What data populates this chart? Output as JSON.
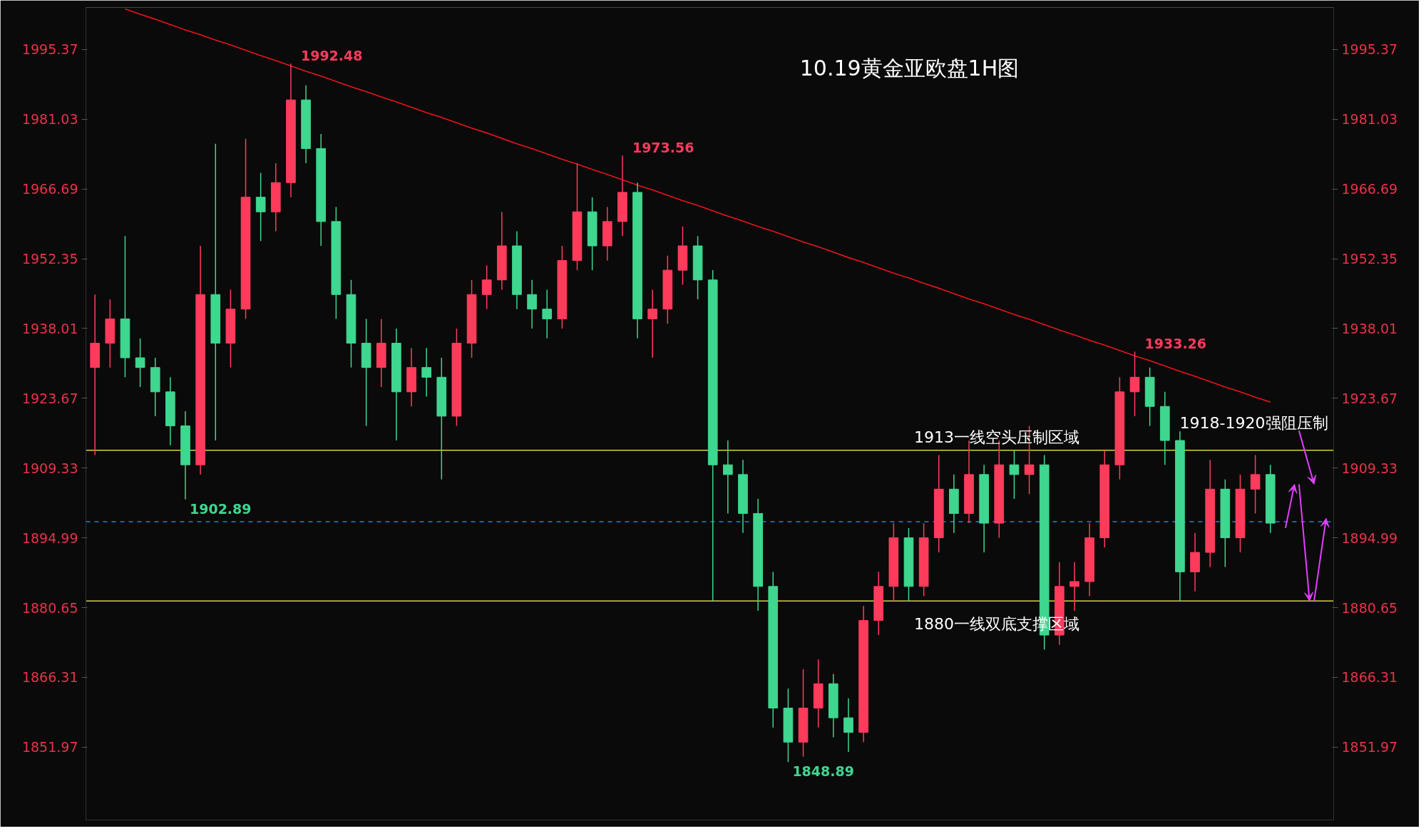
{
  "chart_data": {
    "type": "candlestick",
    "title": "10.19黄金亚欧盘1H图",
    "categories": [
      null,
      null,
      null,
      null,
      null,
      null,
      null,
      null,
      null,
      null,
      null,
      null,
      null,
      null,
      null,
      null,
      null,
      null,
      null,
      null,
      null,
      null,
      null,
      null,
      null,
      null,
      null,
      null,
      null,
      null,
      null,
      null,
      null,
      null,
      null,
      null,
      null,
      null,
      null,
      null,
      null,
      null,
      null,
      null,
      null,
      null,
      null,
      null,
      null,
      null,
      null,
      null,
      null,
      null,
      null,
      null,
      null,
      null,
      null,
      null,
      null,
      null,
      null,
      null,
      null,
      null,
      null,
      null,
      null,
      null,
      null,
      null,
      null,
      null,
      null,
      null,
      null,
      null,
      null
    ],
    "ohlc": [
      [
        1930,
        1945,
        1912,
        1935
      ],
      [
        1935,
        1944,
        1930,
        1940
      ],
      [
        1940,
        1957,
        1928,
        1932
      ],
      [
        1932,
        1936,
        1926,
        1930
      ],
      [
        1930,
        1932,
        1920,
        1925
      ],
      [
        1925,
        1928,
        1914,
        1918
      ],
      [
        1918,
        1921,
        1902.89,
        1910
      ],
      [
        1910,
        1955,
        1908,
        1945
      ],
      [
        1945,
        1976,
        1915,
        1935
      ],
      [
        1935,
        1946,
        1930,
        1942
      ],
      [
        1942,
        1977,
        1940,
        1965
      ],
      [
        1965,
        1970,
        1956,
        1962
      ],
      [
        1962,
        1972,
        1958,
        1968
      ],
      [
        1968,
        1992.48,
        1965,
        1985
      ],
      [
        1985,
        1988,
        1972,
        1975
      ],
      [
        1975,
        1978,
        1955,
        1960
      ],
      [
        1960,
        1963,
        1940,
        1945
      ],
      [
        1945,
        1948,
        1930,
        1935
      ],
      [
        1935,
        1940,
        1918,
        1930
      ],
      [
        1930,
        1940,
        1926,
        1935
      ],
      [
        1935,
        1938,
        1915,
        1925
      ],
      [
        1925,
        1934,
        1922,
        1930
      ],
      [
        1930,
        1934,
        1924,
        1928
      ],
      [
        1928,
        1932,
        1907,
        1920
      ],
      [
        1920,
        1938,
        1918,
        1935
      ],
      [
        1935,
        1948,
        1932,
        1945
      ],
      [
        1945,
        1951,
        1942,
        1948
      ],
      [
        1948,
        1962,
        1946,
        1955
      ],
      [
        1955,
        1958,
        1942,
        1945
      ],
      [
        1945,
        1948,
        1938,
        1942
      ],
      [
        1942,
        1946,
        1936,
        1940
      ],
      [
        1940,
        1955,
        1938,
        1952
      ],
      [
        1952,
        1972,
        1950,
        1962
      ],
      [
        1962,
        1965,
        1950,
        1955
      ],
      [
        1955,
        1963,
        1952,
        1960
      ],
      [
        1960,
        1973.56,
        1957,
        1966
      ],
      [
        1966,
        1968,
        1936,
        1940
      ],
      [
        1940,
        1946,
        1932,
        1942
      ],
      [
        1942,
        1953,
        1939,
        1950
      ],
      [
        1950,
        1959,
        1947,
        1955
      ],
      [
        1955,
        1957,
        1944,
        1948
      ],
      [
        1948,
        1950,
        1882,
        1910
      ],
      [
        1910,
        1915,
        1900,
        1908
      ],
      [
        1908,
        1911,
        1896,
        1900
      ],
      [
        1900,
        1903,
        1880,
        1885
      ],
      [
        1885,
        1888,
        1856,
        1860
      ],
      [
        1860,
        1864,
        1848.89,
        1853
      ],
      [
        1853,
        1868,
        1850,
        1860
      ],
      [
        1860,
        1870,
        1856,
        1865
      ],
      [
        1865,
        1867,
        1854,
        1858
      ],
      [
        1858,
        1862,
        1851,
        1855
      ],
      [
        1855,
        1881,
        1853,
        1878
      ],
      [
        1878,
        1888,
        1875,
        1885
      ],
      [
        1885,
        1898,
        1882,
        1895
      ],
      [
        1895,
        1897,
        1882,
        1885
      ],
      [
        1885,
        1898,
        1883,
        1895
      ],
      [
        1895,
        1912,
        1892,
        1905
      ],
      [
        1905,
        1908,
        1896,
        1900
      ],
      [
        1900,
        1915,
        1898,
        1908
      ],
      [
        1908,
        1910,
        1892,
        1898
      ],
      [
        1898,
        1915,
        1895,
        1910
      ],
      [
        1910,
        1913,
        1903,
        1908
      ],
      [
        1908,
        1918,
        1904,
        1910
      ],
      [
        1910,
        1912,
        1872,
        1875
      ],
      [
        1875,
        1890,
        1873,
        1885
      ],
      [
        1885,
        1890,
        1880,
        1886
      ],
      [
        1886,
        1898,
        1883,
        1895
      ],
      [
        1895,
        1913,
        1893,
        1910
      ],
      [
        1910,
        1928,
        1907,
        1925
      ],
      [
        1925,
        1933.26,
        1920,
        1928
      ],
      [
        1928,
        1930,
        1918,
        1922
      ],
      [
        1922,
        1925,
        1910,
        1915
      ],
      [
        1915,
        1917,
        1882,
        1888
      ],
      [
        1888,
        1896,
        1884,
        1892
      ],
      [
        1892,
        1911,
        1889,
        1905
      ],
      [
        1905,
        1907,
        1889,
        1895
      ],
      [
        1895,
        1908,
        1892,
        1905
      ],
      [
        1905,
        1912,
        1900,
        1908
      ],
      [
        1908,
        1910,
        1896,
        1898
      ]
    ],
    "series": [
      {
        "type": "line",
        "color": "#e8141e",
        "values": [
          null,
          null,
          2003.7,
          2002.6,
          2001.6,
          2000.5,
          1999.4,
          1998.4,
          1997.3,
          1996.3,
          1995.2,
          1994.1,
          1993.1,
          1992.0,
          1990.9,
          1989.9,
          1988.8,
          1987.7,
          1986.7,
          1985.6,
          1984.6,
          1983.5,
          1982.4,
          1981.4,
          1980.3,
          1979.2,
          1978.2,
          1977.1,
          1976.0,
          1975.0,
          1973.9,
          1972.8,
          1971.8,
          1970.7,
          1969.7,
          1968.6,
          1967.5,
          1966.5,
          1965.4,
          1964.3,
          1963.3,
          1962.2,
          1961.1,
          1960.1,
          1959.0,
          1958.0,
          1956.9,
          1955.8,
          1954.8,
          1953.7,
          1952.6,
          1951.6,
          1950.5,
          1949.4,
          1948.4,
          1947.3,
          1946.3,
          1945.2,
          1944.1,
          1943.1,
          1942.0,
          1940.9,
          1939.9,
          1938.8,
          1937.7,
          1936.7,
          1935.6,
          1934.6,
          1933.5,
          1932.4,
          1931.4,
          1930.3,
          1929.2,
          1928.2,
          1927.1,
          1926.0,
          1925.0,
          1923.9,
          1922.9
        ]
      }
    ],
    "ylim": [
      1837,
      2004
    ],
    "yticks": [
      1851.97,
      1866.31,
      1880.65,
      1894.99,
      1909.33,
      1923.67,
      1938.01,
      1952.35,
      1966.69,
      1981.03,
      1995.37
    ],
    "y2lim": [
      1837,
      2004
    ],
    "y2ticks": [
      1851.97,
      1866.31,
      1880.65,
      1894.99,
      1909.33,
      1923.67,
      1938.01,
      1952.35,
      1966.69,
      1981.03,
      1995.37
    ],
    "tick_labels": "y",
    "ref_lines": [
      {
        "axis": "y",
        "value": 1913,
        "label": "1913一线空头压制区域",
        "color": "#d8d23a"
      },
      {
        "axis": "y",
        "value": 1882,
        "label": "1880一线双底支撑区域",
        "color": "#d8d23a"
      },
      {
        "axis": "y",
        "value": 1898.3,
        "color": "#2f7fd0",
        "line_style": "dashed"
      }
    ],
    "annotations": [
      "1902.89",
      "1992.48",
      "1973.56",
      "1848.89",
      "1933.26",
      "1918-1920强阻压制"
    ]
  }
}
